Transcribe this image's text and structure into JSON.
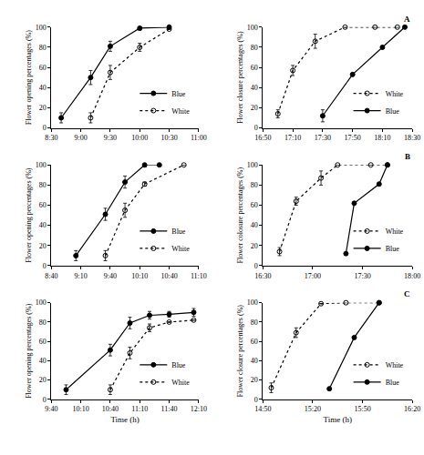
{
  "chart_data": [
    {
      "type": "line",
      "y_label": "Flower opening percentages (%)",
      "legend": "lower right",
      "xlim": [
        510,
        660
      ],
      "xticks": [
        {
          "value": 510,
          "label": "8:30"
        },
        {
          "value": 540,
          "label": "9:00"
        },
        {
          "value": 570,
          "label": "9:30"
        },
        {
          "value": 600,
          "label": "10:00"
        },
        {
          "value": 630,
          "label": "10:30"
        },
        {
          "value": 660,
          "label": "11:00"
        }
      ],
      "ylim": [
        0,
        100
      ],
      "yticks": [
        0,
        20,
        40,
        60,
        80,
        100
      ],
      "series": [
        {
          "name": "Blue",
          "color": "#000000",
          "marker": "filled",
          "line_style": "solid",
          "x": [
            520,
            550,
            570,
            600,
            630
          ],
          "values": [
            10,
            50,
            81,
            99,
            100
          ],
          "errors": [
            5,
            7,
            5,
            2,
            0
          ]
        },
        {
          "name": "White",
          "color": "#000000",
          "marker": "open",
          "line_style": "dot",
          "x": [
            550,
            570,
            600,
            630
          ],
          "values": [
            10,
            55,
            80,
            98
          ],
          "errors": [
            5,
            7,
            4,
            0
          ]
        }
      ]
    },
    {
      "type": "line",
      "y_label": "Flower closure percentages (%)",
      "legend": "lower right",
      "annotation": "A",
      "xlim": [
        1010,
        1110
      ],
      "xticks": [
        {
          "value": 1010,
          "label": "16:50"
        },
        {
          "value": 1030,
          "label": "17:10"
        },
        {
          "value": 1050,
          "label": "17:30"
        },
        {
          "value": 1070,
          "label": "17:50"
        },
        {
          "value": 1090,
          "label": "18:10"
        },
        {
          "value": 1110,
          "label": "18:30"
        }
      ],
      "ylim": [
        0,
        100
      ],
      "yticks": [
        0,
        20,
        40,
        60,
        80,
        100
      ],
      "series": [
        {
          "name": "White",
          "color": "#000000",
          "marker": "open",
          "line_style": "dot",
          "x": [
            1020,
            1030,
            1045,
            1065,
            1085,
            1100
          ],
          "values": [
            14,
            57,
            86,
            100,
            100,
            100
          ],
          "errors": [
            4,
            5,
            7,
            0,
            0,
            0
          ]
        },
        {
          "name": "Blue",
          "color": "#000000",
          "marker": "filled",
          "line_style": "solid",
          "x": [
            1050,
            1070,
            1090,
            1105
          ],
          "values": [
            12,
            53,
            80,
            100
          ],
          "errors": [
            6,
            0,
            0,
            0
          ]
        }
      ]
    },
    {
      "type": "line",
      "y_label": "Flower opening percentages (%)",
      "legend": "lower right",
      "xlim": [
        520,
        670
      ],
      "xticks": [
        {
          "value": 520,
          "label": "8:40"
        },
        {
          "value": 550,
          "label": "9:10"
        },
        {
          "value": 580,
          "label": "9:40"
        },
        {
          "value": 610,
          "label": "10:10"
        },
        {
          "value": 640,
          "label": "10:40"
        },
        {
          "value": 670,
          "label": "11:10"
        }
      ],
      "ylim": [
        0,
        100
      ],
      "yticks": [
        0,
        20,
        40,
        60,
        80,
        100
      ],
      "series": [
        {
          "name": "Blue",
          "color": "#000000",
          "marker": "filled",
          "line_style": "solid",
          "x": [
            545,
            575,
            595,
            615,
            630
          ],
          "values": [
            10,
            51,
            83,
            100,
            100
          ],
          "errors": [
            5,
            6,
            6,
            2,
            0
          ]
        },
        {
          "name": "White",
          "color": "#000000",
          "marker": "open",
          "line_style": "dot",
          "x": [
            575,
            595,
            615,
            655
          ],
          "values": [
            10,
            55,
            81,
            100
          ],
          "errors": [
            5,
            7,
            2,
            0
          ]
        }
      ]
    },
    {
      "type": "line",
      "y_label": "Flower colosure percentages (%)",
      "legend": "lower right",
      "annotation": "B",
      "xlim": [
        990,
        1080
      ],
      "xticks": [
        {
          "value": 990,
          "label": "16:30"
        },
        {
          "value": 1020,
          "label": "17:00"
        },
        {
          "value": 1050,
          "label": "17:30"
        },
        {
          "value": 1080,
          "label": "18:00"
        }
      ],
      "ylim": [
        0,
        100
      ],
      "yticks": [
        0,
        20,
        40,
        60,
        80,
        100
      ],
      "series": [
        {
          "name": "White",
          "color": "#000000",
          "marker": "open",
          "line_style": "dot",
          "x": [
            1000,
            1010,
            1025,
            1035,
            1055,
            1065
          ],
          "values": [
            14,
            64,
            87,
            100,
            100,
            100
          ],
          "errors": [
            4,
            4,
            7,
            0,
            0,
            0
          ]
        },
        {
          "name": "Blue",
          "color": "#000000",
          "marker": "filled",
          "line_style": "solid",
          "x": [
            1040,
            1045,
            1060,
            1065
          ],
          "values": [
            12,
            62,
            81,
            100
          ],
          "errors": [
            0,
            0,
            0,
            0
          ]
        }
      ]
    },
    {
      "type": "line",
      "y_label": "Flower opening percentages (%)",
      "x_label": "Time (h)",
      "legend": "lower right",
      "xlim": [
        580,
        730
      ],
      "xticks": [
        {
          "value": 580,
          "label": "9:40"
        },
        {
          "value": 610,
          "label": "10:10"
        },
        {
          "value": 640,
          "label": "10:40"
        },
        {
          "value": 670,
          "label": "11:10"
        },
        {
          "value": 700,
          "label": "11:40"
        },
        {
          "value": 730,
          "label": "12:10"
        }
      ],
      "ylim": [
        0,
        100
      ],
      "yticks": [
        0,
        20,
        40,
        60,
        80,
        100
      ],
      "series": [
        {
          "name": "Blue",
          "color": "#000000",
          "marker": "filled",
          "line_style": "solid",
          "x": [
            595,
            640,
            660,
            680,
            700,
            725
          ],
          "values": [
            10,
            51,
            79,
            87,
            88,
            90
          ],
          "errors": [
            5,
            6,
            6,
            4,
            3,
            4
          ]
        },
        {
          "name": "White",
          "color": "#000000",
          "marker": "open",
          "line_style": "dot",
          "x": [
            640,
            660,
            680,
            700,
            725
          ],
          "values": [
            10,
            48,
            74,
            80,
            82
          ],
          "errors": [
            5,
            6,
            4,
            0,
            0
          ]
        }
      ]
    },
    {
      "type": "line",
      "y_label": "Flower closure percentages (%)",
      "x_label": "Time (h)",
      "legend": "lower right",
      "annotation": "C",
      "xlim": [
        890,
        980
      ],
      "xticks": [
        {
          "value": 890,
          "label": "14:50"
        },
        {
          "value": 920,
          "label": "15:20"
        },
        {
          "value": 950,
          "label": "15:50"
        },
        {
          "value": 980,
          "label": "16:20"
        }
      ],
      "ylim": [
        0,
        100
      ],
      "yticks": [
        0,
        20,
        40,
        60,
        80,
        100
      ],
      "series": [
        {
          "name": "White",
          "color": "#000000",
          "marker": "open",
          "line_style": "dot",
          "x": [
            895,
            910,
            925,
            940,
            960
          ],
          "values": [
            12,
            69,
            99,
            100,
            100
          ],
          "errors": [
            5,
            5,
            0,
            0,
            0
          ]
        },
        {
          "name": "Blue",
          "color": "#000000",
          "marker": "filled",
          "line_style": "solid",
          "x": [
            930,
            945,
            960
          ],
          "values": [
            11,
            64,
            100
          ],
          "errors": [
            0,
            0,
            0
          ]
        }
      ]
    }
  ]
}
